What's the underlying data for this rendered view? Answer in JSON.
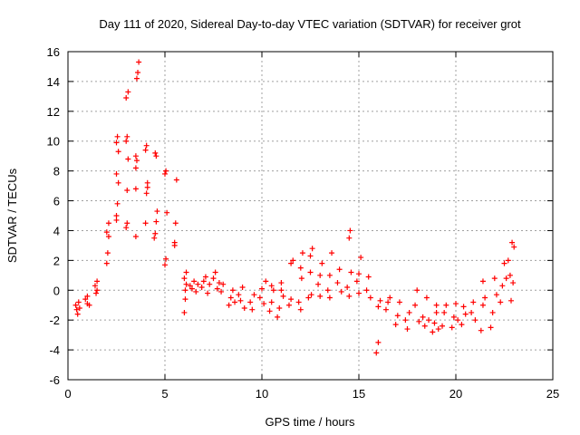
{
  "chart_data": {
    "type": "scatter",
    "title": "Day 111 of 2020, Sidereal Day-to-day VTEC variation (SDTVAR) for receiver grot",
    "xlabel": "GPS time / hours",
    "ylabel": "SDTVAR / TECUs",
    "xlim": [
      0,
      25
    ],
    "ylim": [
      -6,
      16
    ],
    "x_ticks": [
      0,
      5,
      10,
      15,
      20,
      25
    ],
    "y_ticks": [
      -6,
      -4,
      -2,
      0,
      2,
      4,
      6,
      8,
      10,
      12,
      14,
      16
    ],
    "x_tick_labels": [
      "0",
      "5",
      "10",
      "15",
      "20",
      "25"
    ],
    "y_tick_labels": [
      "-6",
      "-4",
      "-2",
      "0",
      "2",
      "4",
      "6",
      "8",
      "10",
      "12",
      "14",
      "16"
    ],
    "grid": true,
    "marker": "+",
    "marker_color": "#ff0000",
    "series": [
      {
        "name": "SDTVAR",
        "points": [
          [
            0.4,
            -1.0
          ],
          [
            0.45,
            -1.3
          ],
          [
            0.5,
            -1.6
          ],
          [
            0.55,
            -0.8
          ],
          [
            0.6,
            -1.2
          ],
          [
            0.9,
            -0.6
          ],
          [
            1.0,
            -0.9
          ],
          [
            1.1,
            -1.0
          ],
          [
            1.0,
            -0.4
          ],
          [
            1.4,
            0.3
          ],
          [
            1.5,
            0.0
          ],
          [
            1.5,
            0.6
          ],
          [
            1.45,
            -0.2
          ],
          [
            2.0,
            1.8
          ],
          [
            2.05,
            2.5
          ],
          [
            2.0,
            3.9
          ],
          [
            2.1,
            4.5
          ],
          [
            2.1,
            3.6
          ],
          [
            2.5,
            5.0
          ],
          [
            2.55,
            5.8
          ],
          [
            2.6,
            7.2
          ],
          [
            2.5,
            7.8
          ],
          [
            2.6,
            9.3
          ],
          [
            2.5,
            9.9
          ],
          [
            2.55,
            10.3
          ],
          [
            2.5,
            4.7
          ],
          [
            3.0,
            4.2
          ],
          [
            3.05,
            6.7
          ],
          [
            3.1,
            8.8
          ],
          [
            3.0,
            10.0
          ],
          [
            3.05,
            10.3
          ],
          [
            3.0,
            12.9
          ],
          [
            3.1,
            13.3
          ],
          [
            3.05,
            4.5
          ],
          [
            3.5,
            3.6
          ],
          [
            3.5,
            6.8
          ],
          [
            3.55,
            8.7
          ],
          [
            3.5,
            9.0
          ],
          [
            3.6,
            14.6
          ],
          [
            3.65,
            15.3
          ],
          [
            3.55,
            14.2
          ],
          [
            3.5,
            8.2
          ],
          [
            4.0,
            4.5
          ],
          [
            4.05,
            6.5
          ],
          [
            4.1,
            7.2
          ],
          [
            4.0,
            9.4
          ],
          [
            4.05,
            9.7
          ],
          [
            4.1,
            6.9
          ],
          [
            4.5,
            3.8
          ],
          [
            4.55,
            4.6
          ],
          [
            4.6,
            5.3
          ],
          [
            4.5,
            9.2
          ],
          [
            4.55,
            9.0
          ],
          [
            4.45,
            3.5
          ],
          [
            5.0,
            1.7
          ],
          [
            5.05,
            2.1
          ],
          [
            5.1,
            5.2
          ],
          [
            5.0,
            7.8
          ],
          [
            5.05,
            8.0
          ],
          [
            5.5,
            3.0
          ],
          [
            5.55,
            4.5
          ],
          [
            5.6,
            7.4
          ],
          [
            5.5,
            3.2
          ],
          [
            6.0,
            -1.5
          ],
          [
            6.05,
            -0.6
          ],
          [
            6.1,
            0.4
          ],
          [
            6.0,
            0.8
          ],
          [
            6.1,
            1.2
          ],
          [
            6.05,
            0.0
          ],
          [
            6.3,
            0.3
          ],
          [
            6.4,
            0.1
          ],
          [
            6.5,
            0.6
          ],
          [
            6.6,
            -0.1
          ],
          [
            6.7,
            0.4
          ],
          [
            6.9,
            0.2
          ],
          [
            7.0,
            0.6
          ],
          [
            7.1,
            0.9
          ],
          [
            7.2,
            -0.2
          ],
          [
            7.3,
            0.4
          ],
          [
            7.5,
            0.8
          ],
          [
            7.6,
            1.2
          ],
          [
            7.7,
            0.1
          ],
          [
            7.8,
            0.5
          ],
          [
            7.9,
            -0.1
          ],
          [
            8.0,
            0.4
          ],
          [
            8.3,
            -1.0
          ],
          [
            8.4,
            -0.5
          ],
          [
            8.5,
            0.0
          ],
          [
            8.6,
            -0.8
          ],
          [
            8.8,
            -0.3
          ],
          [
            8.9,
            -0.7
          ],
          [
            9.0,
            0.2
          ],
          [
            9.1,
            -1.2
          ],
          [
            9.4,
            -0.8
          ],
          [
            9.5,
            -1.3
          ],
          [
            9.6,
            -0.3
          ],
          [
            9.9,
            -0.5
          ],
          [
            10.0,
            0.1
          ],
          [
            10.1,
            -0.9
          ],
          [
            10.2,
            0.6
          ],
          [
            10.4,
            -1.4
          ],
          [
            10.5,
            -0.8
          ],
          [
            10.6,
            0.0
          ],
          [
            10.5,
            0.3
          ],
          [
            10.8,
            -1.8
          ],
          [
            10.9,
            -1.2
          ],
          [
            11.0,
            0.5
          ],
          [
            11.1,
            -0.4
          ],
          [
            11.0,
            0.0
          ],
          [
            11.4,
            -1.0
          ],
          [
            11.5,
            1.8
          ],
          [
            11.6,
            2.0
          ],
          [
            11.5,
            -0.6
          ],
          [
            11.9,
            -0.8
          ],
          [
            12.0,
            1.5
          ],
          [
            12.1,
            2.5
          ],
          [
            12.0,
            -1.3
          ],
          [
            12.05,
            0.8
          ],
          [
            12.4,
            -0.5
          ],
          [
            12.5,
            1.2
          ],
          [
            12.6,
            2.8
          ],
          [
            12.5,
            2.3
          ],
          [
            12.55,
            -0.3
          ],
          [
            12.9,
            0.4
          ],
          [
            13.0,
            1.0
          ],
          [
            13.1,
            1.8
          ],
          [
            13.0,
            -0.4
          ],
          [
            13.4,
            0.0
          ],
          [
            13.5,
            1.0
          ],
          [
            13.6,
            2.5
          ],
          [
            13.5,
            -0.5
          ],
          [
            13.9,
            0.5
          ],
          [
            14.0,
            1.4
          ],
          [
            14.1,
            -0.1
          ],
          [
            14.4,
            0.2
          ],
          [
            14.5,
            -0.4
          ],
          [
            14.5,
            3.5
          ],
          [
            14.55,
            4.0
          ],
          [
            14.6,
            1.2
          ],
          [
            14.9,
            0.6
          ],
          [
            15.0,
            1.1
          ],
          [
            15.1,
            2.2
          ],
          [
            15.0,
            -0.2
          ],
          [
            15.4,
            0.0
          ],
          [
            15.5,
            0.9
          ],
          [
            15.6,
            -0.5
          ],
          [
            15.9,
            -4.2
          ],
          [
            16.0,
            -3.5
          ],
          [
            16.1,
            -0.7
          ],
          [
            16.0,
            -1.1
          ],
          [
            16.4,
            -1.3
          ],
          [
            16.5,
            -0.8
          ],
          [
            16.6,
            -0.5
          ],
          [
            16.9,
            -2.3
          ],
          [
            17.0,
            -1.7
          ],
          [
            17.1,
            -0.8
          ],
          [
            17.4,
            -2.0
          ],
          [
            17.5,
            -2.6
          ],
          [
            17.6,
            -1.5
          ],
          [
            17.9,
            -1.0
          ],
          [
            18.0,
            0.0
          ],
          [
            18.1,
            -2.1
          ],
          [
            18.3,
            -1.8
          ],
          [
            18.4,
            -2.4
          ],
          [
            18.5,
            -0.5
          ],
          [
            18.6,
            -2.0
          ],
          [
            18.8,
            -2.8
          ],
          [
            18.9,
            -2.2
          ],
          [
            19.0,
            -1.5
          ],
          [
            19.1,
            -2.6
          ],
          [
            19.0,
            -1.0
          ],
          [
            19.3,
            -2.4
          ],
          [
            19.4,
            -1.5
          ],
          [
            19.5,
            -1.0
          ],
          [
            19.8,
            -2.5
          ],
          [
            19.9,
            -1.8
          ],
          [
            20.0,
            -0.9
          ],
          [
            20.1,
            -2.0
          ],
          [
            20.3,
            -2.3
          ],
          [
            20.4,
            -1.1
          ],
          [
            20.5,
            -1.6
          ],
          [
            20.8,
            -1.5
          ],
          [
            20.9,
            -0.8
          ],
          [
            21.0,
            -2.0
          ],
          [
            21.3,
            -2.7
          ],
          [
            21.4,
            -1.0
          ],
          [
            21.5,
            -0.5
          ],
          [
            21.4,
            0.6
          ],
          [
            21.8,
            -2.5
          ],
          [
            21.9,
            -1.5
          ],
          [
            22.0,
            0.8
          ],
          [
            22.1,
            -0.3
          ],
          [
            22.3,
            -0.8
          ],
          [
            22.4,
            0.3
          ],
          [
            22.5,
            1.8
          ],
          [
            22.6,
            0.8
          ],
          [
            22.7,
            2.0
          ],
          [
            22.8,
            1.0
          ],
          [
            22.9,
            3.2
          ],
          [
            23.0,
            2.9
          ],
          [
            22.85,
            -0.7
          ],
          [
            22.95,
            0.5
          ]
        ]
      }
    ]
  }
}
